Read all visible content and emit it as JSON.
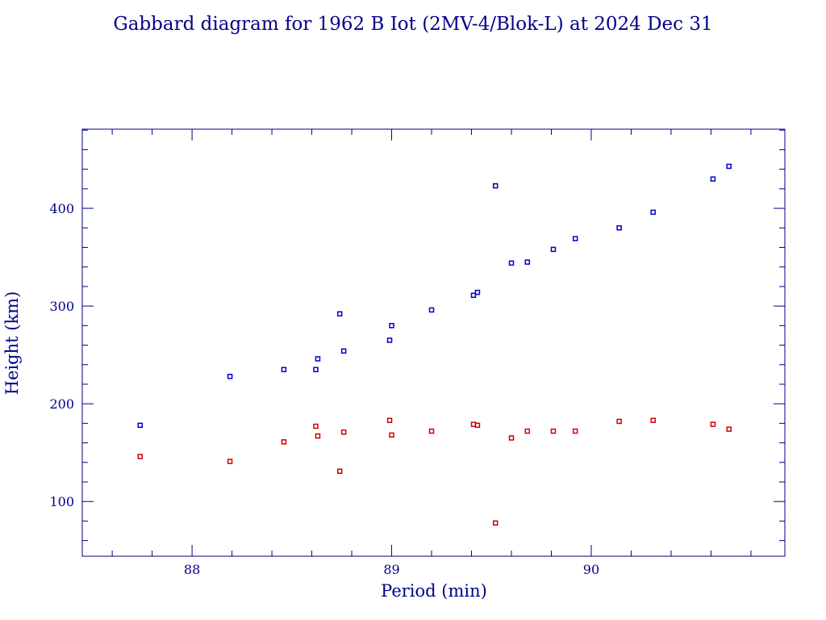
{
  "chart_data": {
    "type": "scatter",
    "title": "Gabbard diagram for 1962 B Iot (2MV-4/Blok-L) at 2024 Dec 31",
    "xlabel": "Period (min)",
    "ylabel": "Height (km)",
    "xlim": [
      87.45,
      90.97
    ],
    "ylim": [
      44,
      481
    ],
    "xticks": [
      88,
      89,
      90
    ],
    "yticks": [
      100,
      200,
      300,
      400
    ],
    "x_minor_step": 0.2,
    "y_minor_step": 20,
    "grid": false,
    "legend": "none",
    "colors": {
      "frame": "#00008B",
      "apogee": "#0000CC",
      "perigee": "#CC0000"
    },
    "series": [
      {
        "role": "apogee",
        "color": "#0000CC",
        "points": [
          [
            87.74,
            178
          ],
          [
            88.19,
            228
          ],
          [
            88.46,
            235
          ],
          [
            88.62,
            235
          ],
          [
            88.63,
            246
          ],
          [
            88.74,
            292
          ],
          [
            88.76,
            254
          ],
          [
            88.99,
            265
          ],
          [
            89.0,
            280
          ],
          [
            89.2,
            296
          ],
          [
            89.41,
            311
          ],
          [
            89.43,
            314
          ],
          [
            89.52,
            423
          ],
          [
            89.6,
            344
          ],
          [
            89.68,
            345
          ],
          [
            89.81,
            358
          ],
          [
            89.92,
            369
          ],
          [
            90.14,
            380
          ],
          [
            90.31,
            396
          ],
          [
            90.61,
            430
          ],
          [
            90.69,
            443
          ]
        ]
      },
      {
        "role": "perigee",
        "color": "#CC0000",
        "points": [
          [
            87.74,
            146
          ],
          [
            88.19,
            141
          ],
          [
            88.46,
            161
          ],
          [
            88.62,
            177
          ],
          [
            88.63,
            167
          ],
          [
            88.74,
            131
          ],
          [
            88.76,
            171
          ],
          [
            88.99,
            183
          ],
          [
            89.0,
            168
          ],
          [
            89.2,
            172
          ],
          [
            89.41,
            179
          ],
          [
            89.43,
            178
          ],
          [
            89.52,
            78
          ],
          [
            89.6,
            165
          ],
          [
            89.68,
            172
          ],
          [
            89.81,
            172
          ],
          [
            89.92,
            172
          ],
          [
            90.14,
            182
          ],
          [
            90.31,
            183
          ],
          [
            90.61,
            179
          ],
          [
            90.69,
            174
          ]
        ]
      }
    ]
  }
}
